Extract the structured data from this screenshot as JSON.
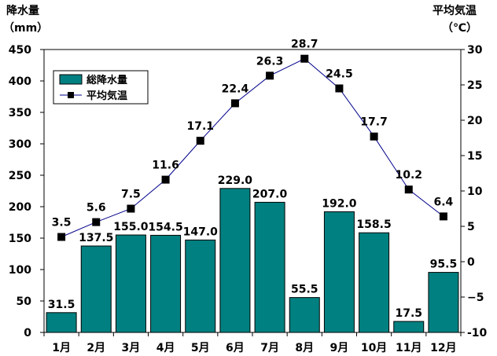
{
  "chart_data": {
    "type": "bar",
    "categories": [
      "1月",
      "2月",
      "3月",
      "4月",
      "5月",
      "6月",
      "7月",
      "8月",
      "9月",
      "10月",
      "11月",
      "12月"
    ],
    "series": [
      {
        "name": "総降水量",
        "type": "bar",
        "axis": "left",
        "color": "#008080",
        "values": [
          31.5,
          137.5,
          155.0,
          154.5,
          147.0,
          229.0,
          207.0,
          55.5,
          192.0,
          158.5,
          17.5,
          95.5
        ],
        "labels": [
          "31.5",
          "137.5",
          "155.0",
          "154.5",
          "147.0",
          "229.0",
          "207.0",
          "55.5",
          "192.0",
          "158.5",
          "17.5",
          "95.5"
        ]
      },
      {
        "name": "平均気温",
        "type": "line",
        "axis": "right",
        "color": "#00008B",
        "marker": "square",
        "values": [
          3.5,
          5.6,
          7.5,
          11.6,
          17.1,
          22.4,
          26.3,
          28.7,
          24.5,
          17.7,
          10.2,
          6.4
        ],
        "labels": [
          "3.5",
          "5.6",
          "7.5",
          "11.6",
          "17.1",
          "22.4",
          "26.3",
          "28.7",
          "24.5",
          "17.7",
          "10.2",
          "6.4"
        ]
      }
    ],
    "y_left": {
      "label_line1": "降水量",
      "label_line2": "（mm）",
      "lim": [
        0,
        450
      ],
      "ticks": [
        "0",
        "50",
        "100",
        "150",
        "200",
        "250",
        "300",
        "350",
        "400",
        "450"
      ]
    },
    "y_right": {
      "label_line1": "平均気温",
      "label_line2": "（℃）",
      "lim": [
        -10,
        30
      ],
      "ticks": [
        "-10",
        "−5",
        "0",
        "5",
        "10",
        "15",
        "20",
        "25",
        "30"
      ]
    },
    "legend": {
      "placement": "top-left",
      "entries": [
        "総降水量",
        "平均気温"
      ]
    },
    "grid": false
  }
}
